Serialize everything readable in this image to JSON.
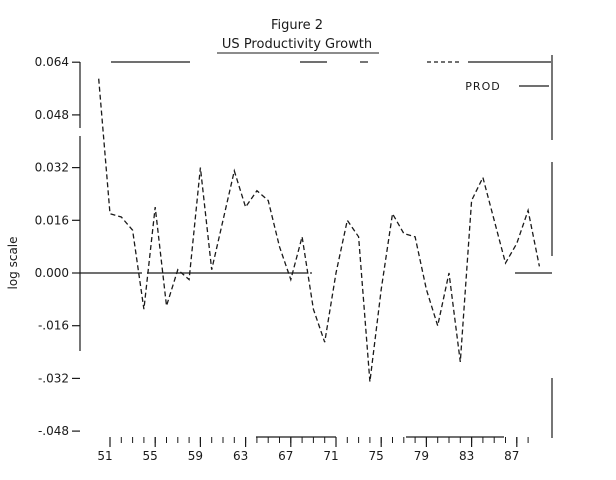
{
  "figure": {
    "title_line1": "Figure 2",
    "title_line2": "US Productivity Growth"
  },
  "legend": {
    "label": "PROD"
  },
  "y_axis": {
    "label": "log scale",
    "tick_labels": [
      "0.064",
      "0.048",
      "0.032",
      "0.016",
      "0.000",
      "-.016",
      "-.032",
      "-.048"
    ],
    "tick_values": [
      0.064,
      0.048,
      0.032,
      0.016,
      0.0,
      -0.016,
      -0.032,
      -0.048
    ]
  },
  "x_axis": {
    "tick_labels": [
      "51",
      "55",
      "59",
      "63",
      "67",
      "71",
      "75",
      "79",
      "83",
      "87"
    ],
    "tick_years": [
      1951,
      1955,
      1959,
      1963,
      1967,
      1971,
      1975,
      1979,
      1983,
      1987
    ],
    "minor_tick_years": [
      1951,
      1952,
      1953,
      1954,
      1955,
      1956,
      1957,
      1958,
      1959,
      1960,
      1961,
      1962,
      1963,
      1964,
      1965,
      1966,
      1967,
      1968,
      1969,
      1970,
      1971,
      1972,
      1973,
      1974,
      1975,
      1976,
      1977,
      1978,
      1979,
      1980,
      1981,
      1982,
      1983,
      1984,
      1985,
      1986,
      1987,
      1988
    ]
  },
  "chart_data": {
    "type": "line",
    "title": "Figure 2",
    "subtitle": "US Productivity Growth",
    "xlabel": "",
    "ylabel": "log scale",
    "ylim": [
      -0.048,
      0.064
    ],
    "ytick_step": 0.016,
    "grid": false,
    "line_style": "dashed",
    "color": "#1a1a1a",
    "legend_position": "top-right",
    "x": [
      1950,
      1951,
      1952,
      1953,
      1954,
      1955,
      1956,
      1957,
      1958,
      1959,
      1960,
      1961,
      1962,
      1963,
      1964,
      1965,
      1966,
      1967,
      1968,
      1969,
      1970,
      1971,
      1972,
      1973,
      1974,
      1975,
      1976,
      1977,
      1978,
      1979,
      1980,
      1981,
      1982,
      1983,
      1984,
      1985,
      1986,
      1987,
      1988,
      1989
    ],
    "series": [
      {
        "name": "PROD",
        "values": [
          0.059,
          0.018,
          0.017,
          0.013,
          -0.011,
          0.02,
          -0.01,
          0.001,
          -0.002,
          0.032,
          0.001,
          0.016,
          0.031,
          0.02,
          0.025,
          0.022,
          0.008,
          -0.002,
          0.011,
          -0.011,
          -0.021,
          0.0,
          0.016,
          0.011,
          -0.033,
          -0.005,
          0.018,
          0.012,
          0.011,
          -0.005,
          -0.016,
          0.0,
          -0.027,
          0.022,
          0.029,
          0.016,
          0.003,
          0.009,
          0.019,
          0.002
        ]
      }
    ]
  }
}
